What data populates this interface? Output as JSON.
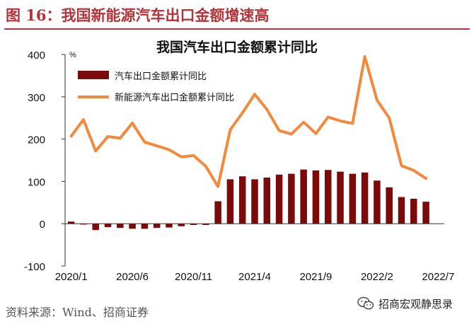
{
  "figure_title": "图 16：我国新能源汽车出口金额增速高",
  "source_text": "资料来源：Wind、招商证券",
  "watermark": "招商宏观静思录",
  "watermark_icon": "wechat-icon",
  "colors": {
    "accent": "#b4343a",
    "bar": "#7b0b0b",
    "line": "#f28a3d"
  },
  "chart_data": {
    "type": "bar+line",
    "title": "我国汽车出口金额累计同比",
    "y_unit_label": "%",
    "ylim": [
      -100,
      400
    ],
    "yticks": [
      -100,
      0,
      100,
      200,
      300,
      400
    ],
    "x_tick_labels": [
      "2020/1",
      "2020/6",
      "2020/11",
      "2021/4",
      "2021/9",
      "2022/2",
      "2022/7"
    ],
    "legend_position": "upper-left",
    "grid": false,
    "categories": [
      "2020/1",
      "2020/2",
      "2020/3",
      "2020/4",
      "2020/5",
      "2020/6",
      "2020/7",
      "2020/8",
      "2020/9",
      "2020/10",
      "2020/11",
      "2020/12",
      "2021/1",
      "2021/2",
      "2021/3",
      "2021/4",
      "2021/5",
      "2021/6",
      "2021/7",
      "2021/8",
      "2021/9",
      "2021/10",
      "2021/11",
      "2021/12",
      "2022/1",
      "2022/2",
      "2022/3",
      "2022/4",
      "2022/5",
      "2022/6",
      "2022/7"
    ],
    "series": [
      {
        "name": "汽车出口金额累计同比",
        "type": "bar",
        "values": [
          5,
          -2,
          -15,
          -8,
          -10,
          -12,
          -12,
          -10,
          -9,
          -6,
          -3,
          -3,
          53,
          105,
          112,
          105,
          109,
          116,
          118,
          128,
          126,
          127,
          123,
          118,
          121,
          102,
          86,
          63,
          59,
          52,
          null
        ]
      },
      {
        "name": "新能源汽车出口金额累计同比",
        "type": "line",
        "values": [
          207,
          246,
          172,
          206,
          202,
          238,
          193,
          184,
          175,
          158,
          161,
          136,
          88,
          222,
          262,
          306,
          270,
          220,
          212,
          240,
          213,
          252,
          243,
          237,
          395,
          292,
          250,
          137,
          126,
          107,
          null
        ]
      }
    ]
  }
}
